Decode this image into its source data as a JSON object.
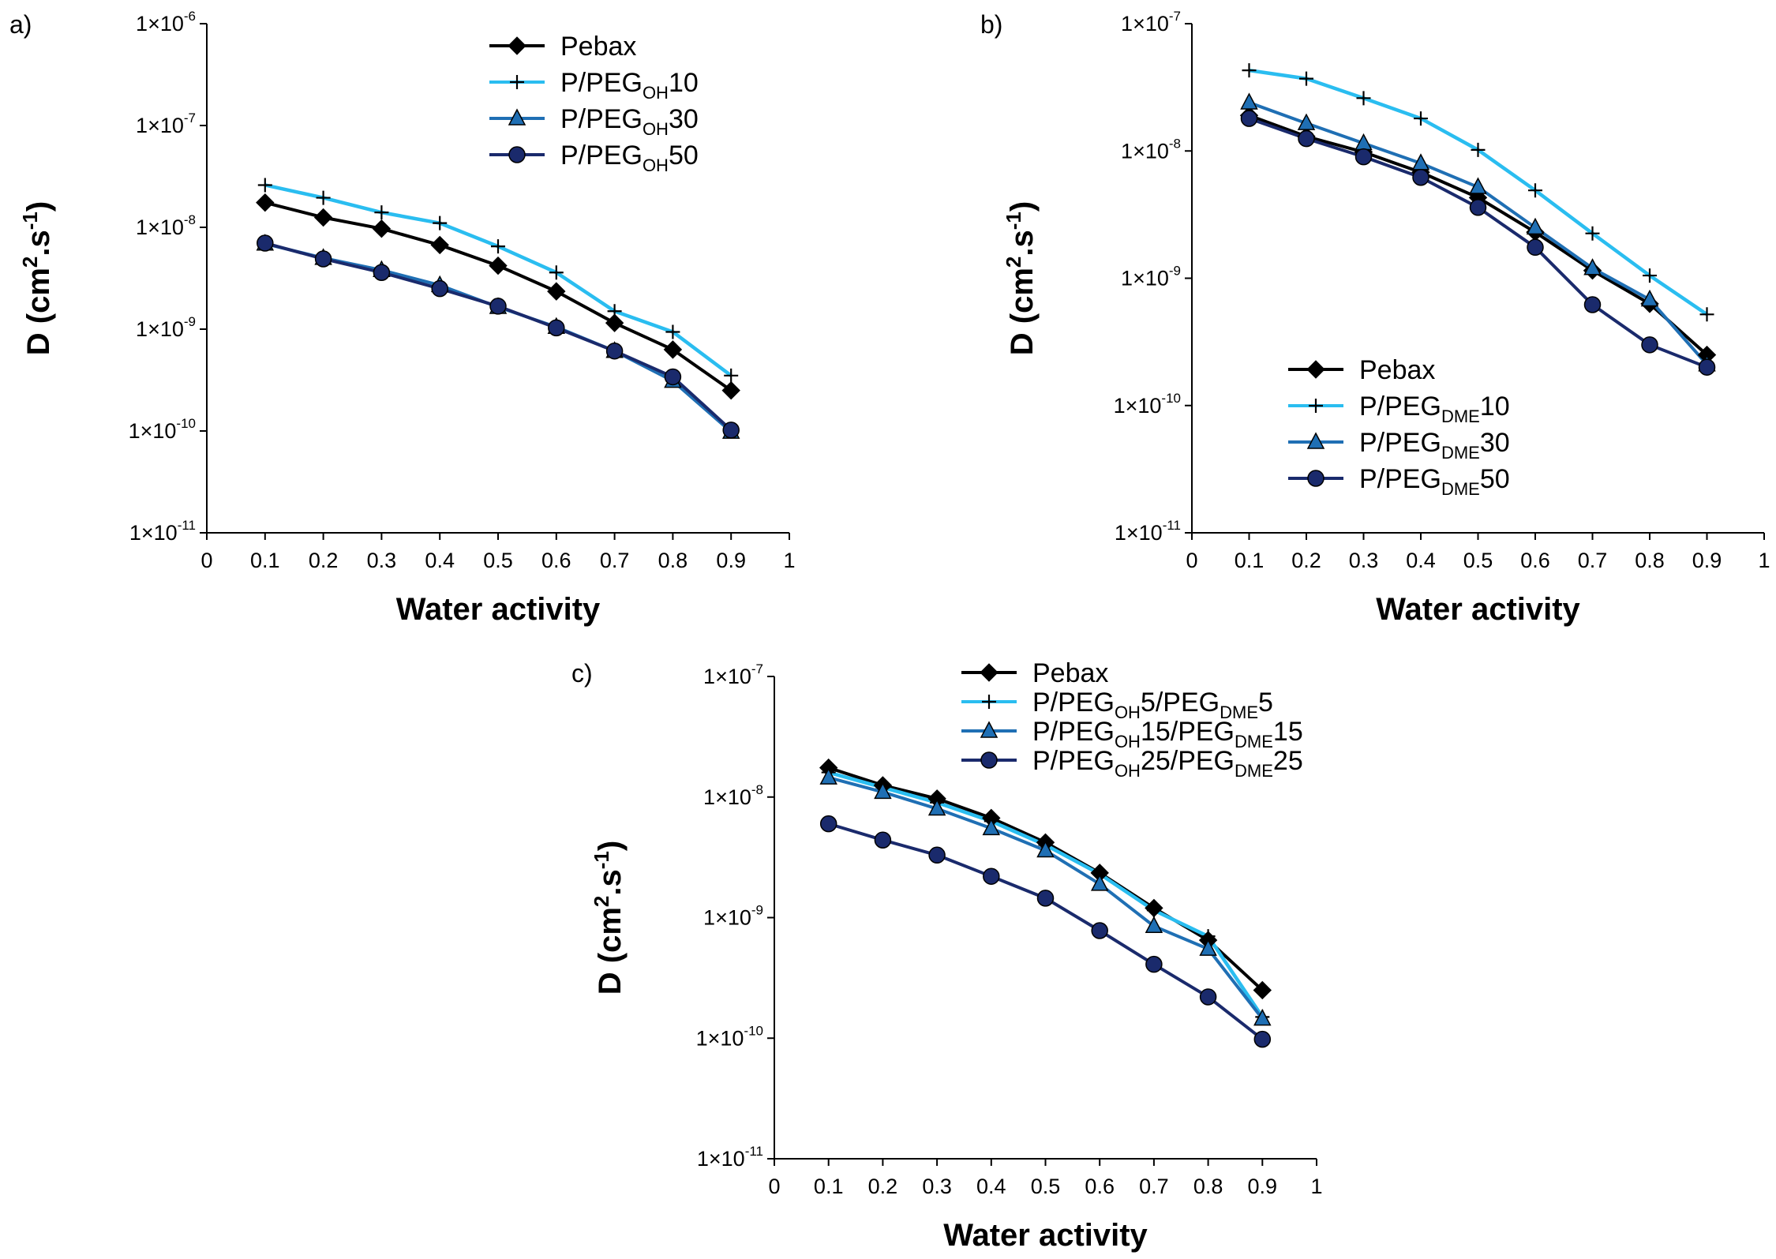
{
  "chart_data": [
    {
      "type": "line",
      "panel_label": "a)",
      "xlabel": "Water activity",
      "ylabel": "D (cm².s⁻¹)",
      "ylabel_parts": {
        "base": "D (cm",
        "sup1": "2",
        "mid": ".s",
        "sup2": "-1",
        "end": ")"
      },
      "yscale": "log",
      "xlim": [
        0,
        1
      ],
      "ylim": [
        1e-11,
        1e-06
      ],
      "x_ticks": [
        "0",
        "0.1",
        "0.2",
        "0.3",
        "0.4",
        "0.5",
        "0.6",
        "0.7",
        "0.8",
        "0.9",
        "1"
      ],
      "y_ticks": [
        {
          "base": "1×10",
          "exp": "-11",
          "value": 1e-11
        },
        {
          "base": "1×10",
          "exp": "-10",
          "value": 1e-10
        },
        {
          "base": "1×10",
          "exp": "-9",
          "value": 1e-09
        },
        {
          "base": "1×10",
          "exp": "-8",
          "value": 1e-08
        },
        {
          "base": "1×10",
          "exp": "-7",
          "value": 1e-07
        },
        {
          "base": "1×10",
          "exp": "-6",
          "value": 1e-06
        }
      ],
      "x": [
        0.1,
        0.2,
        0.3,
        0.4,
        0.5,
        0.6,
        0.7,
        0.8,
        0.9
      ],
      "legend_position": "top-right",
      "series": [
        {
          "name": "Pebax",
          "legend": [
            {
              "t": "Pebax"
            }
          ],
          "color": "#000000",
          "marker": "diamond",
          "values": [
            1.75e-08,
            1.25e-08,
            9.7e-09,
            6.7e-09,
            4.2e-09,
            2.35e-09,
            1.15e-09,
            6.3e-10,
            2.5e-10
          ]
        },
        {
          "name": "P/PEGOH10",
          "legend": [
            {
              "t": "P/PEG"
            },
            {
              "t": "OH",
              "sub": true
            },
            {
              "t": "10"
            }
          ],
          "color": "#2ABDF0",
          "marker": "plus",
          "values": [
            2.6e-08,
            1.95e-08,
            1.4e-08,
            1.1e-08,
            6.5e-09,
            3.6e-09,
            1.5e-09,
            9.4e-10,
            3.5e-10
          ]
        },
        {
          "name": "P/PEGOH30",
          "legend": [
            {
              "t": "P/PEG"
            },
            {
              "t": "OH",
              "sub": true
            },
            {
              "t": "30"
            }
          ],
          "color": "#1F6FB4",
          "marker": "triangle",
          "values": [
            6.9e-09,
            5e-09,
            3.8e-09,
            2.7e-09,
            1.65e-09,
            1.05e-09,
            6.1e-10,
            3.1e-10,
            9.8e-11
          ]
        },
        {
          "name": "P/PEGOH50",
          "legend": [
            {
              "t": "P/PEG"
            },
            {
              "t": "OH",
              "sub": true
            },
            {
              "t": "50"
            }
          ],
          "color": "#1A2A6C",
          "marker": "circle",
          "values": [
            7e-09,
            4.9e-09,
            3.6e-09,
            2.5e-09,
            1.68e-09,
            1.03e-09,
            6.1e-10,
            3.4e-10,
            1.02e-10
          ]
        }
      ]
    },
    {
      "type": "line",
      "panel_label": "b)",
      "xlabel": "Water activity",
      "ylabel": "D (cm².s⁻¹)",
      "ylabel_parts": {
        "base": "D (cm",
        "sup1": "2",
        "mid": ".s",
        "sup2": "-1",
        "end": ")"
      },
      "yscale": "log",
      "xlim": [
        0,
        1
      ],
      "ylim": [
        1e-11,
        1e-07
      ],
      "x_ticks": [
        "0",
        "0.1",
        "0.2",
        "0.3",
        "0.4",
        "0.5",
        "0.6",
        "0.7",
        "0.8",
        "0.9",
        "1"
      ],
      "y_ticks": [
        {
          "base": "1×10",
          "exp": "-11",
          "value": 1e-11
        },
        {
          "base": "1×10",
          "exp": "-10",
          "value": 1e-10
        },
        {
          "base": "1×10",
          "exp": "-9",
          "value": 1e-09
        },
        {
          "base": "1×10",
          "exp": "-8",
          "value": 1e-08
        },
        {
          "base": "1×10",
          "exp": "-7",
          "value": 1e-07
        }
      ],
      "x": [
        0.1,
        0.2,
        0.3,
        0.4,
        0.5,
        0.6,
        0.7,
        0.8,
        0.9
      ],
      "legend_position": "bottom-center",
      "series": [
        {
          "name": "Pebax",
          "legend": [
            {
              "t": "Pebax"
            }
          ],
          "color": "#000000",
          "marker": "diamond",
          "values": [
            1.9e-08,
            1.3e-08,
            9.8e-09,
            6.8e-09,
            4.3e-09,
            2.3e-09,
            1.15e-09,
            6.3e-10,
            2.5e-10
          ]
        },
        {
          "name": "P/PEGDME10",
          "legend": [
            {
              "t": "P/PEG"
            },
            {
              "t": "DME",
              "sub": true
            },
            {
              "t": "10"
            }
          ],
          "color": "#2ABDF0",
          "marker": "plus",
          "values": [
            4.3e-08,
            3.7e-08,
            2.6e-08,
            1.8e-08,
            1.02e-08,
            4.9e-09,
            2.25e-09,
            1.05e-09,
            5.2e-10
          ]
        },
        {
          "name": "P/PEGDME30",
          "legend": [
            {
              "t": "P/PEG"
            },
            {
              "t": "DME",
              "sub": true
            },
            {
              "t": "30"
            }
          ],
          "color": "#1F6FB4",
          "marker": "triangle",
          "values": [
            2.4e-08,
            1.65e-08,
            1.15e-08,
            8e-09,
            5.2e-09,
            2.5e-09,
            1.2e-09,
            6.8e-10,
            2.1e-10
          ]
        },
        {
          "name": "P/PEGDME50",
          "legend": [
            {
              "t": "P/PEG"
            },
            {
              "t": "DME",
              "sub": true
            },
            {
              "t": "50"
            }
          ],
          "color": "#1A2A6C",
          "marker": "circle",
          "values": [
            1.8e-08,
            1.25e-08,
            9e-09,
            6.2e-09,
            3.6e-09,
            1.75e-09,
            6.2e-10,
            3e-10,
            2e-10
          ]
        }
      ]
    },
    {
      "type": "line",
      "panel_label": "c)",
      "xlabel": "Water activity",
      "ylabel": "D (cm².s⁻¹)",
      "ylabel_parts": {
        "base": "D (cm",
        "sup1": "2",
        "mid": ".s",
        "sup2": "-1",
        "end": ")"
      },
      "yscale": "log",
      "xlim": [
        0,
        1
      ],
      "ylim": [
        1e-11,
        1e-07
      ],
      "x_ticks": [
        "0",
        "0.1",
        "0.2",
        "0.3",
        "0.4",
        "0.5",
        "0.6",
        "0.7",
        "0.8",
        "0.9",
        "1"
      ],
      "y_ticks": [
        {
          "base": "1×10",
          "exp": "-11",
          "value": 1e-11
        },
        {
          "base": "1×10",
          "exp": "-10",
          "value": 1e-10
        },
        {
          "base": "1×10",
          "exp": "-9",
          "value": 1e-09
        },
        {
          "base": "1×10",
          "exp": "-8",
          "value": 1e-08
        },
        {
          "base": "1×10",
          "exp": "-7",
          "value": 1e-07
        }
      ],
      "x": [
        0.1,
        0.2,
        0.3,
        0.4,
        0.5,
        0.6,
        0.7,
        0.8,
        0.9
      ],
      "legend_position": "top-right",
      "series": [
        {
          "name": "Pebax",
          "legend": [
            {
              "t": "Pebax"
            }
          ],
          "color": "#000000",
          "marker": "diamond",
          "values": [
            1.75e-08,
            1.25e-08,
            9.7e-09,
            6.7e-09,
            4.2e-09,
            2.35e-09,
            1.2e-09,
            6.5e-10,
            2.5e-10
          ]
        },
        {
          "name": "P/PEGOH5/PEGDME5",
          "legend": [
            {
              "t": "P/PEG"
            },
            {
              "t": "OH",
              "sub": true
            },
            {
              "t": "5/PEG"
            },
            {
              "t": "DME",
              "sub": true
            },
            {
              "t": "5"
            }
          ],
          "color": "#2ABDF0",
          "marker": "plus",
          "values": [
            1.6e-08,
            1.2e-08,
            9e-09,
            6.3e-09,
            4e-09,
            2.3e-09,
            1.15e-09,
            7e-10,
            1.5e-10
          ]
        },
        {
          "name": "P/PEGOH15/PEGDME15",
          "legend": [
            {
              "t": "P/PEG"
            },
            {
              "t": "OH",
              "sub": true
            },
            {
              "t": "15/PEG"
            },
            {
              "t": "DME",
              "sub": true
            },
            {
              "t": "15"
            }
          ],
          "color": "#1F6FB4",
          "marker": "triangle",
          "values": [
            1.45e-08,
            1.1e-08,
            8e-09,
            5.5e-09,
            3.6e-09,
            1.9e-09,
            8.5e-10,
            5.5e-10,
            1.45e-10
          ]
        },
        {
          "name": "P/PEGOH25/PEGDME25",
          "legend": [
            {
              "t": "P/PEG"
            },
            {
              "t": "OH",
              "sub": true
            },
            {
              "t": "25/PEG"
            },
            {
              "t": "DME",
              "sub": true
            },
            {
              "t": "25"
            }
          ],
          "color": "#1A2A6C",
          "marker": "circle",
          "values": [
            6e-09,
            4.4e-09,
            3.3e-09,
            2.2e-09,
            1.45e-09,
            7.8e-10,
            4.1e-10,
            2.2e-10,
            9.8e-11
          ]
        }
      ]
    }
  ]
}
